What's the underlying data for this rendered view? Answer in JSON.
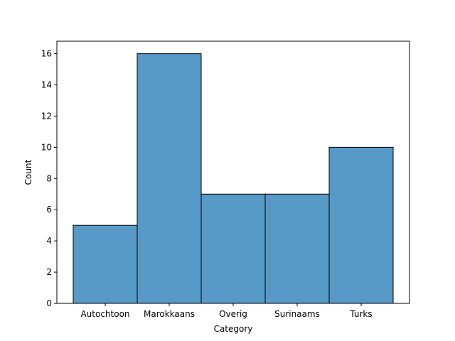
{
  "chart_data": {
    "type": "bar",
    "categories": [
      "Autochtoon",
      "Marokkaans",
      "Overig",
      "Surinaams",
      "Turks"
    ],
    "values": [
      5,
      16,
      7,
      7,
      10
    ],
    "title": "",
    "xlabel": "Category",
    "ylabel": "Count",
    "ylim": [
      0,
      16.8
    ],
    "yticks": [
      0,
      2,
      4,
      6,
      8,
      10,
      12,
      14,
      16
    ],
    "grid": false,
    "legend": "none",
    "bar_color": "#5799c7",
    "edge_color": "#000000"
  }
}
